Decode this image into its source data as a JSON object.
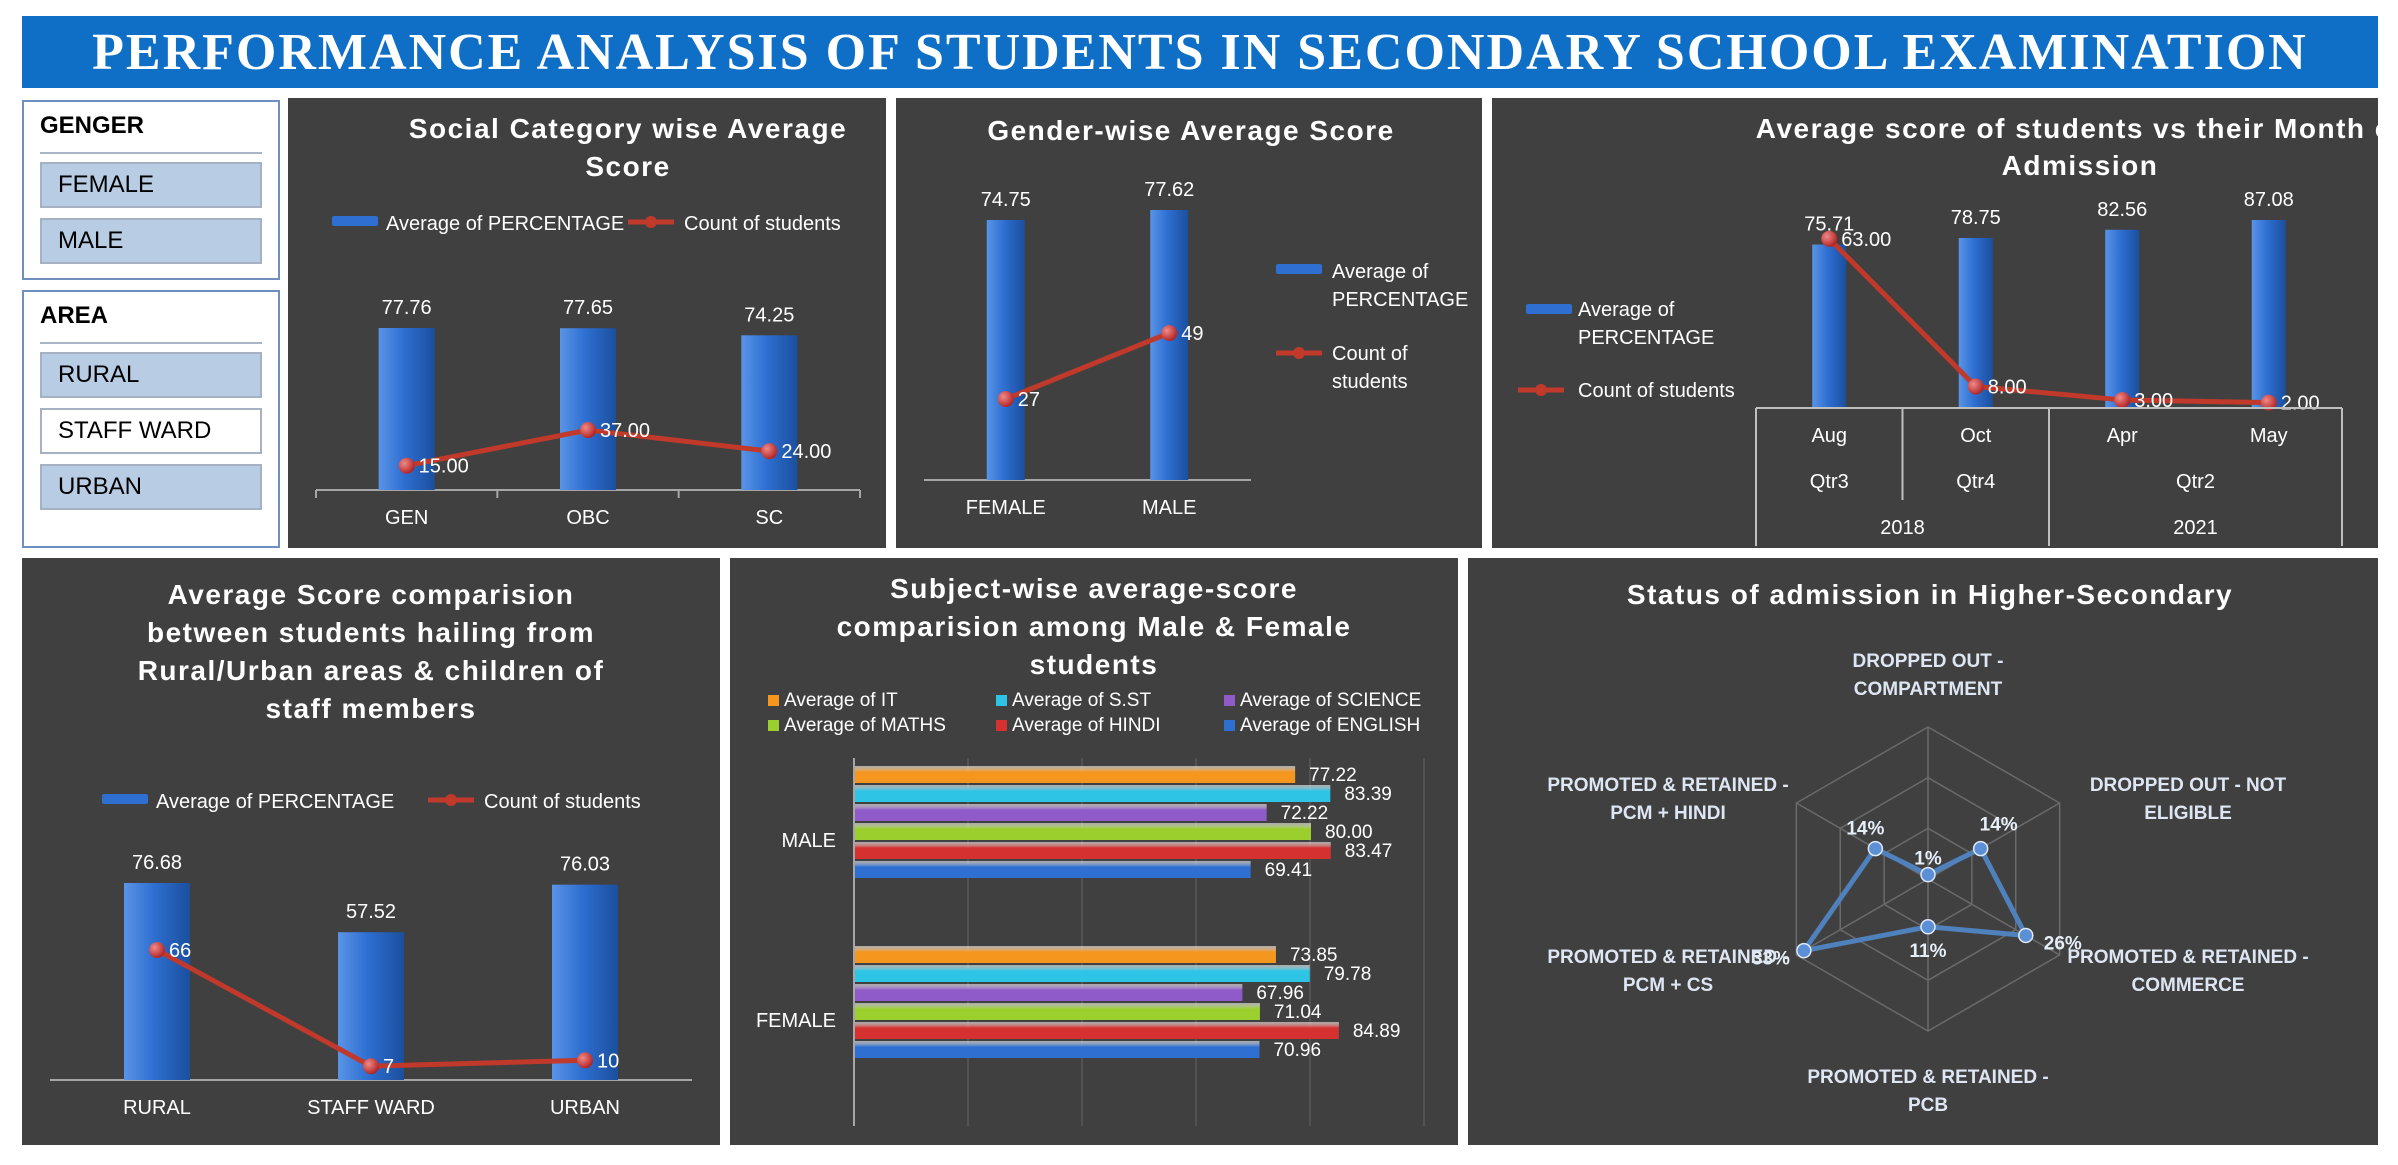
{
  "dashboard_title": "PERFORMANCE ANALYSIS OF STUDENTS IN SECONDARY SCHOOL EXAMINATION",
  "slicers": {
    "gender": {
      "title": "GENGER",
      "items": [
        {
          "label": "FEMALE",
          "selected": true
        },
        {
          "label": "MALE",
          "selected": true
        }
      ]
    },
    "area": {
      "title": "AREA",
      "items": [
        {
          "label": "RURAL",
          "selected": true
        },
        {
          "label": "STAFF WARD",
          "selected": false
        },
        {
          "label": "URBAN",
          "selected": true
        }
      ]
    }
  },
  "legend_labels": {
    "avg": "Average of PERCENTAGE",
    "count": "Count of students",
    "avg_wrap": [
      "Average of",
      "PERCENTAGE"
    ],
    "count_wrap": [
      "Count of",
      "students"
    ]
  },
  "colors": {
    "bar": "#2e6fd1",
    "line": "#c0392b",
    "panel": "#404040",
    "banner": "#0f6fc6",
    "text": "#ffffff",
    "radar": "#4f81bd",
    "subjects": [
      "#f5961e",
      "#2ec4e6",
      "#8e5bc9",
      "#9bcf2e",
      "#d63131",
      "#2e6fd1"
    ]
  },
  "chart_data": [
    {
      "id": "social",
      "type": "bar",
      "title": [
        "Social Category wise Average",
        "Score"
      ],
      "categories": [
        "GEN",
        "OBC",
        "SC"
      ],
      "series": [
        {
          "name": "Average of PERCENTAGE",
          "kind": "bar",
          "values": [
            77.76,
            77.65,
            74.25
          ],
          "labels": [
            "77.76",
            "77.65",
            "74.25"
          ]
        },
        {
          "name": "Count of students",
          "kind": "line",
          "values": [
            15,
            37,
            24
          ],
          "labels": [
            "15.00",
            "37.00",
            "24.00"
          ]
        }
      ],
      "legend": "top"
    },
    {
      "id": "gender",
      "type": "bar",
      "title": [
        "Gender-wise Average Score"
      ],
      "categories": [
        "FEMALE",
        "MALE"
      ],
      "series": [
        {
          "name": "Average of PERCENTAGE",
          "kind": "bar",
          "values": [
            74.75,
            77.62
          ],
          "labels": [
            "74.75",
            "77.62"
          ]
        },
        {
          "name": "Count of students",
          "kind": "line",
          "values": [
            27,
            49
          ],
          "labels": [
            "27",
            "49"
          ]
        }
      ],
      "legend": "right"
    },
    {
      "id": "month",
      "type": "bar",
      "title": [
        "Average score of students vs their Month of",
        "Admission"
      ],
      "categories": [
        "Aug",
        "Oct",
        "Apr",
        "May"
      ],
      "quarters": [
        {
          "label": "Qtr3",
          "span": 1
        },
        {
          "label": "Qtr4",
          "span": 1
        },
        {
          "label": "Qtr2",
          "span": 2
        }
      ],
      "years": [
        {
          "label": "2018",
          "span": 2
        },
        {
          "label": "2021",
          "span": 2
        }
      ],
      "series": [
        {
          "name": "Average of PERCENTAGE",
          "kind": "bar",
          "values": [
            75.71,
            78.75,
            82.56,
            87.08
          ],
          "labels": [
            "75.71",
            "78.75",
            "82.56",
            "87.08"
          ]
        },
        {
          "name": "Count of students",
          "kind": "line",
          "values": [
            63,
            8,
            3,
            2
          ],
          "labels": [
            "63.00",
            "8.00",
            "3.00",
            "2.00"
          ]
        }
      ],
      "legend": "left"
    },
    {
      "id": "area",
      "type": "bar",
      "title": [
        "Average Score comparision",
        "between students hailing from",
        "Rural/Urban areas & children of",
        "staff members"
      ],
      "categories": [
        "RURAL",
        "STAFF WARD",
        "URBAN"
      ],
      "series": [
        {
          "name": "Average of PERCENTAGE",
          "kind": "bar",
          "values": [
            76.68,
            57.52,
            76.03
          ],
          "labels": [
            "76.68",
            "57.52",
            "76.03"
          ]
        },
        {
          "name": "Count of students",
          "kind": "line",
          "values": [
            66,
            7,
            10
          ],
          "labels": [
            "66",
            "7",
            "10"
          ]
        }
      ],
      "legend": "top"
    },
    {
      "id": "subject",
      "type": "bar",
      "orientation": "horizontal",
      "title": [
        "Subject-wise average-score",
        "comparision among Male & Female",
        "students"
      ],
      "categories": [
        "MALE",
        "FEMALE"
      ],
      "series": [
        {
          "name": "Average of IT",
          "values": [
            77.22,
            73.85
          ],
          "labels": [
            "77.22",
            "73.85"
          ]
        },
        {
          "name": "Average of S.ST",
          "values": [
            83.39,
            79.78
          ],
          "labels": [
            "83.39",
            "79.78"
          ]
        },
        {
          "name": "Average of SCIENCE",
          "values": [
            72.22,
            67.96
          ],
          "labels": [
            "72.22",
            "67.96"
          ]
        },
        {
          "name": "Average of MATHS",
          "values": [
            80.0,
            71.04
          ],
          "labels": [
            "80.00",
            "71.04"
          ]
        },
        {
          "name": "Average of HINDI",
          "values": [
            83.47,
            84.89
          ],
          "labels": [
            "83.47",
            "84.89"
          ]
        },
        {
          "name": "Average of ENGLISH",
          "values": [
            69.41,
            70.96
          ],
          "labels": [
            "69.41",
            "70.96"
          ]
        }
      ],
      "xlim": [
        0,
        100
      ],
      "legend": "top"
    },
    {
      "id": "status",
      "type": "radar",
      "title": [
        "Status of admission in Higher-Secondary"
      ],
      "categories": [
        {
          "lines": [
            "DROPPED OUT -",
            "COMPARTMENT"
          ]
        },
        {
          "lines": [
            "DROPPED OUT -  NOT",
            "ELIGIBLE"
          ]
        },
        {
          "lines": [
            "PROMOTED & RETAINED -",
            "COMMERCE"
          ]
        },
        {
          "lines": [
            "PROMOTED & RETAINED -",
            "PCB"
          ]
        },
        {
          "lines": [
            "PROMOTED & RETAINED -",
            "PCM + CS"
          ]
        },
        {
          "lines": [
            "PROMOTED & RETAINED -",
            "PCM + HINDI"
          ]
        }
      ],
      "values": [
        1,
        14,
        26,
        11,
        33,
        14
      ],
      "labels": [
        "1%",
        "14%",
        "26%",
        "11%",
        "33%",
        "14%"
      ],
      "rmax": 35
    }
  ]
}
